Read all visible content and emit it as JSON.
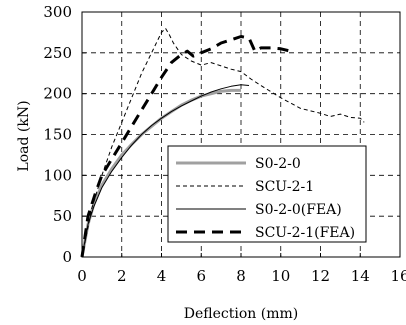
{
  "chart_data": {
    "type": "line",
    "title": "",
    "xlabel": "Deflection (mm)",
    "ylabel": "Load (kN)",
    "xlim": [
      0,
      16
    ],
    "ylim": [
      0,
      300
    ],
    "xticks": [
      0,
      2,
      4,
      6,
      8,
      10,
      12,
      14,
      16
    ],
    "yticks": [
      0,
      50,
      100,
      150,
      200,
      250,
      300
    ],
    "grid": true,
    "grid_style": "dashed",
    "legend_position": "lower-right",
    "series": [
      {
        "name": "S0-2-0",
        "style": "solid-thick-gray",
        "color": "#a0a0a0",
        "x": [
          0,
          0.3,
          0.6,
          1.0,
          1.5,
          2.0,
          2.5,
          3.0,
          3.5,
          4.0,
          4.5,
          5.0,
          5.5,
          6.0,
          6.5,
          7.0,
          7.5,
          8.0
        ],
        "y": [
          0,
          40,
          65,
          88,
          108,
          125,
          138,
          150,
          160,
          170,
          178,
          186,
          192,
          197,
          200,
          203,
          204,
          204
        ]
      },
      {
        "name": "SCU-2-1",
        "style": "dashed-thin",
        "color": "#000000",
        "x": [
          0,
          0.5,
          1.0,
          1.5,
          2.0,
          2.5,
          3.0,
          3.5,
          3.8,
          4.0,
          4.2,
          4.4,
          4.6,
          4.8,
          5.0,
          5.5,
          6.0,
          6.5,
          7.0,
          7.5,
          8.0,
          8.5,
          9.0,
          10.0,
          11.0,
          12.0,
          12.5,
          13.0,
          13.5,
          14.0,
          14.2
        ],
        "y": [
          0,
          60,
          100,
          135,
          165,
          195,
          225,
          250,
          265,
          275,
          280,
          272,
          262,
          255,
          248,
          240,
          235,
          238,
          234,
          230,
          227,
          218,
          210,
          195,
          182,
          176,
          172,
          175,
          171,
          170,
          165
        ]
      },
      {
        "name": "S0-2-0(FEA)",
        "style": "solid-thin",
        "color": "#000000",
        "x": [
          0,
          0.3,
          0.6,
          1.0,
          1.5,
          2.0,
          2.5,
          3.0,
          3.5,
          4.0,
          4.5,
          5.0,
          5.5,
          6.0,
          6.5,
          7.0,
          7.5,
          8.0,
          8.4
        ],
        "y": [
          0,
          40,
          62,
          85,
          105,
          122,
          137,
          150,
          161,
          170,
          178,
          185,
          191,
          197,
          202,
          206,
          209,
          211,
          210
        ]
      },
      {
        "name": "SCU-2-1(FEA)",
        "style": "dashed-thick",
        "color": "#000000",
        "x": [
          0,
          0.3,
          0.7,
          1.0,
          1.5,
          2.0,
          2.5,
          3.0,
          3.5,
          4.0,
          4.5,
          5.0,
          5.3,
          5.6,
          6.0,
          6.5,
          7.0,
          7.5,
          8.0,
          8.4,
          8.7,
          9.0,
          9.5,
          10.0,
          10.5
        ],
        "y": [
          0,
          50,
          80,
          100,
          120,
          140,
          160,
          180,
          200,
          220,
          238,
          248,
          252,
          246,
          250,
          255,
          262,
          266,
          270,
          268,
          252,
          256,
          256,
          255,
          252
        ]
      }
    ]
  }
}
